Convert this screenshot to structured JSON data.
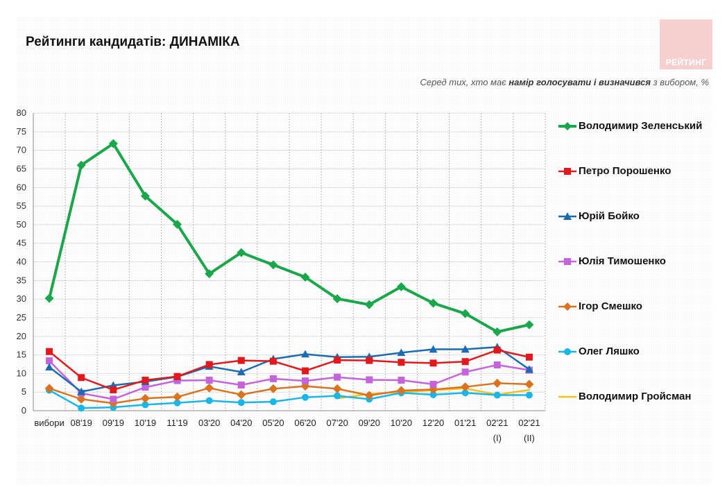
{
  "header": {
    "title": "Рейтинги кандидатів: ДИНАМІКА",
    "subtitle_pre": "Серед тих, хто має ",
    "subtitle_bold": "намір голосувати і визначився",
    "subtitle_post": " з вибором, %",
    "logo_text": "РЕЙТИНГ"
  },
  "chart_data": {
    "type": "line",
    "ylim": [
      0,
      80
    ],
    "yticks": [
      "0",
      "5",
      "10",
      "15",
      "20",
      "25",
      "30",
      "35",
      "40",
      "45",
      "50",
      "55",
      "60",
      "65",
      "70",
      "75",
      "80"
    ],
    "categories": [
      "вибори",
      "08'19",
      "09'19",
      "10'19",
      "11'19",
      "03'20",
      "04'20",
      "05'20",
      "06'20",
      "07'20",
      "09'20",
      "10'20",
      "12'20",
      "01'21",
      "02'21",
      "02'21"
    ],
    "category_sublabels": [
      "",
      "",
      "",
      "",
      "",
      "",
      "",
      "",
      "",
      "",
      "",
      "",
      "",
      "",
      "(I)",
      "(II)"
    ],
    "grid": "vertical-dashed",
    "legend_position": "right",
    "series": [
      {
        "name": "Володимир Зеленський",
        "color": "#1aa64b",
        "marker": "diamond",
        "values": [
          30.2,
          66,
          71.8,
          57.7,
          50.1,
          36.8,
          42.5,
          39.2,
          35.9,
          30.1,
          28.5,
          33.3,
          28.9,
          26.1,
          21.2,
          23.1
        ]
      },
      {
        "name": "Петро Порошенко",
        "color": "#e2191c",
        "marker": "square",
        "values": [
          15.9,
          8.9,
          5.6,
          8.2,
          9.2,
          12.4,
          13.5,
          13.3,
          10.7,
          13.6,
          13.5,
          13,
          12.8,
          13.2,
          16.3,
          14.4
        ]
      },
      {
        "name": "Юрій Бойко",
        "color": "#1a6bb0",
        "marker": "triangle",
        "values": [
          11.7,
          5.1,
          6.8,
          7.8,
          9.1,
          11.9,
          10.4,
          13.9,
          15.2,
          14.4,
          14.5,
          15.6,
          16.5,
          16.5,
          17.1,
          11.1
        ]
      },
      {
        "name": "Юлія Тимошенко",
        "color": "#c463dc",
        "marker": "square",
        "values": [
          13.4,
          4.7,
          3.1,
          6.3,
          8.1,
          8.2,
          6.9,
          8.6,
          8,
          9,
          8.3,
          8.2,
          7.1,
          10.4,
          12.3,
          10.9
        ]
      },
      {
        "name": "Ігор Смешко",
        "color": "#d9731f",
        "marker": "diamond",
        "values": [
          6,
          3.1,
          2,
          3.3,
          3.7,
          6.1,
          4.3,
          5.9,
          6.6,
          5.9,
          4.1,
          5.4,
          5.7,
          6.4,
          7.4,
          7.1
        ]
      },
      {
        "name": "Олег Ляшко",
        "color": "#19b6e8",
        "marker": "circle",
        "values": [
          5.5,
          0.7,
          0.9,
          1.6,
          2.1,
          2.7,
          2.2,
          2.4,
          3.6,
          4,
          3.1,
          4.8,
          4.3,
          4.8,
          4.2,
          4.2
        ]
      },
      {
        "name": "Володимир Гройсман",
        "color": "#f2c01a",
        "marker": "none",
        "values": [
          null,
          null,
          null,
          null,
          null,
          null,
          null,
          null,
          null,
          3.3,
          4.5,
          5,
          5.5,
          6,
          4.3,
          5.6
        ]
      }
    ]
  }
}
